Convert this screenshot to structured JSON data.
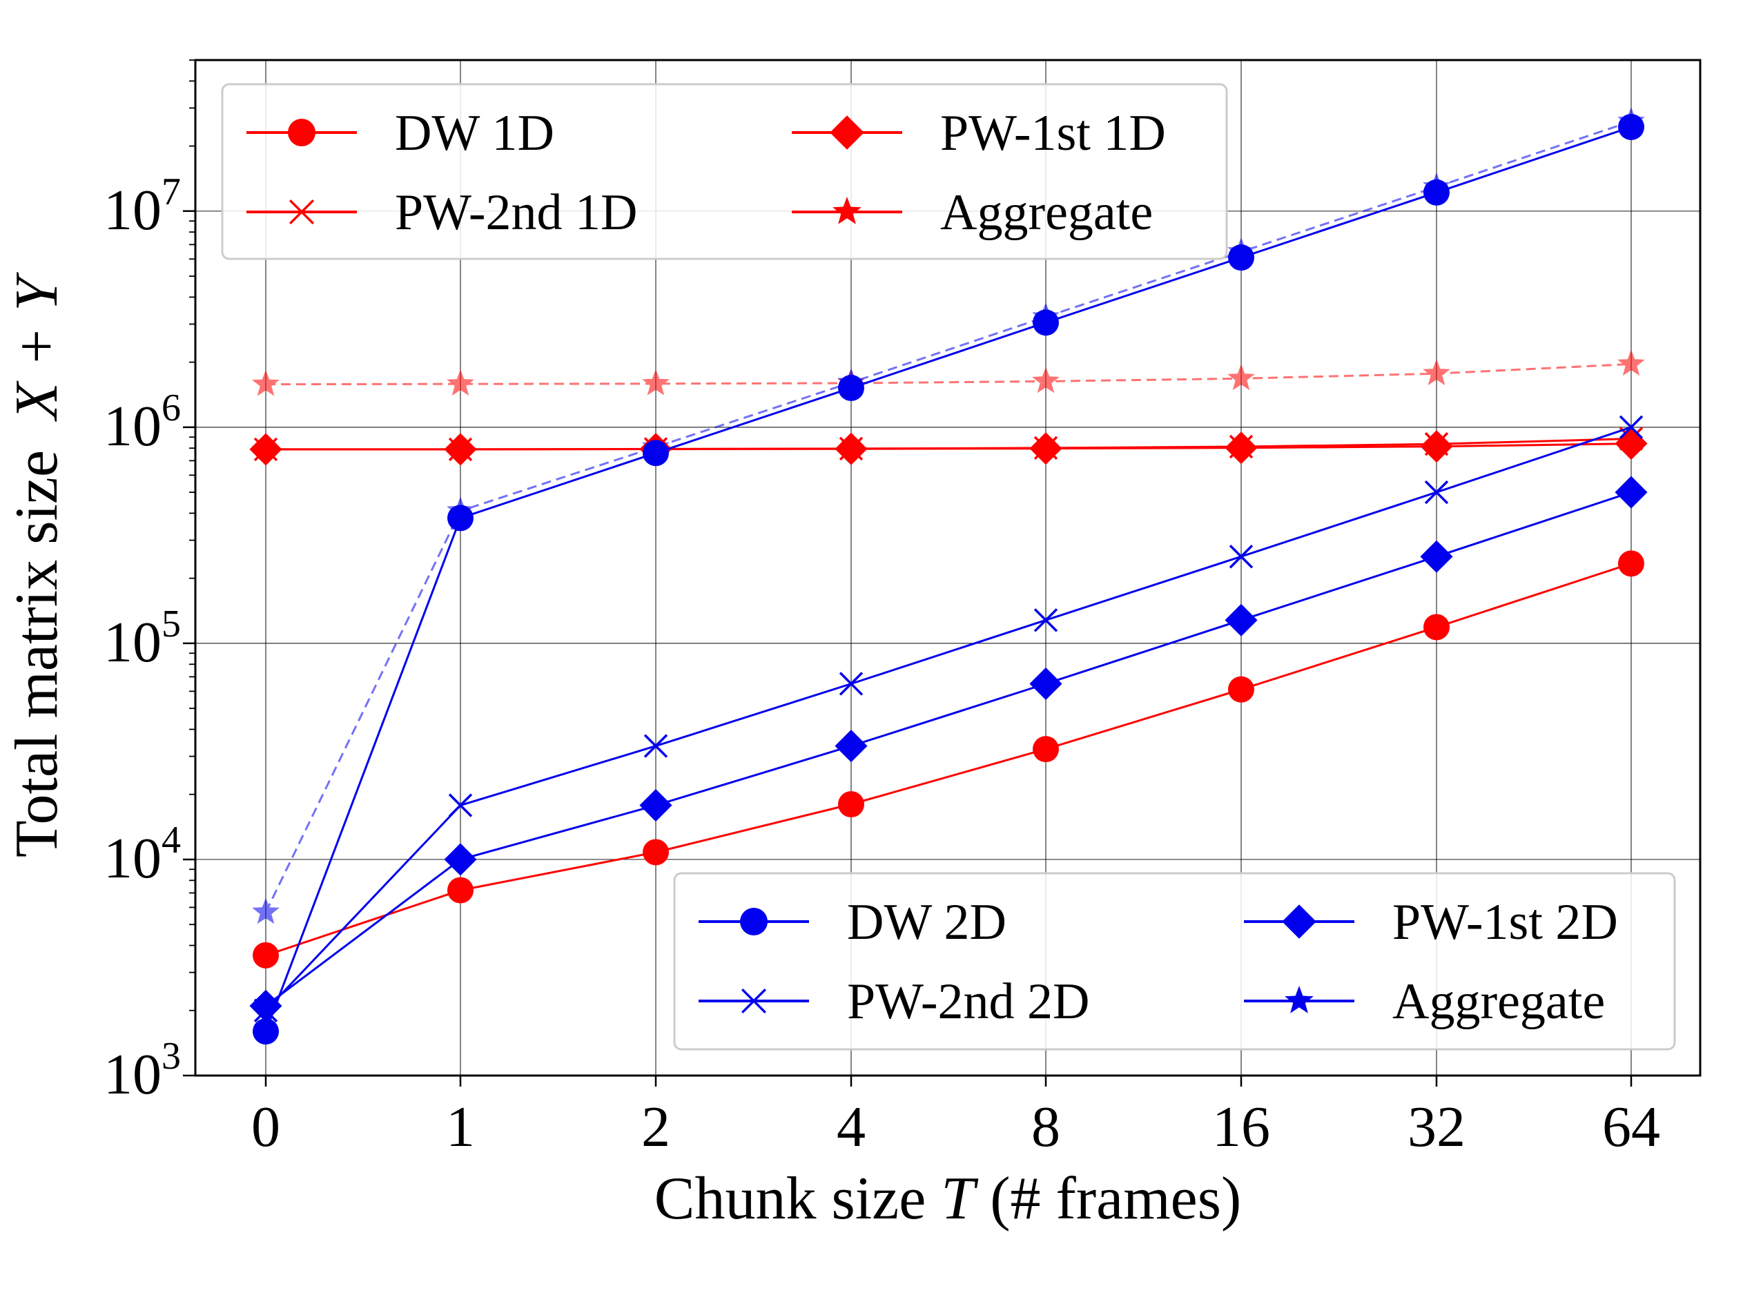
{
  "chart_data": {
    "type": "line",
    "x_scale": "categorical",
    "y_scale": "log",
    "categories": [
      "0",
      "1",
      "2",
      "4",
      "8",
      "16",
      "32",
      "64"
    ],
    "xlabel_prefix": "Chunk size ",
    "xlabel_var": "T",
    "xlabel_suffix": " (# frames)",
    "ylabel_prefix": "Total matrix size  ",
    "ylabel_var": "X + Y",
    "ylim": [
      1000,
      50000000
    ],
    "y_ticks": [
      {
        "value": 1000,
        "base": "10",
        "exp": "3"
      },
      {
        "value": 10000,
        "base": "10",
        "exp": "4"
      },
      {
        "value": 100000,
        "base": "10",
        "exp": "5"
      },
      {
        "value": 1000000,
        "base": "10",
        "exp": "6"
      },
      {
        "value": 10000000,
        "base": "10",
        "exp": "7"
      }
    ],
    "grid": true,
    "colors": {
      "red": "#ff0000",
      "blue": "#0000ee",
      "red_light": "#ff7070",
      "blue_light": "#7a7aee"
    },
    "series": [
      {
        "name": "DW 1D",
        "group": "1D",
        "color": "#ff0000",
        "marker": "circle",
        "linestyle": "solid",
        "alpha": 1,
        "values": [
          3600,
          7200,
          10800,
          18000,
          32400,
          61200,
          118800,
          234000
        ]
      },
      {
        "name": "PW-1st 1D",
        "group": "1D",
        "color": "#ff0000",
        "marker": "diamond",
        "linestyle": "solid",
        "alpha": 1,
        "values": [
          790000,
          790000,
          792000,
          794000,
          797000,
          803000,
          815000,
          840000
        ]
      },
      {
        "name": "PW-2nd 1D",
        "group": "1D",
        "color": "#ff0000",
        "marker": "x",
        "linestyle": "solid",
        "alpha": 1,
        "values": [
          790000,
          790000,
          793000,
          796000,
          802000,
          813000,
          836000,
          885000
        ]
      },
      {
        "name": "Aggregate",
        "group": "1D",
        "color": "#ff0000",
        "marker": "star",
        "linestyle": "dashed",
        "alpha": 0.55,
        "values": [
          1580000,
          1585000,
          1590000,
          1600000,
          1630000,
          1680000,
          1770000,
          1960000
        ]
      },
      {
        "name": "DW 2D",
        "group": "2D",
        "color": "#0000ee",
        "marker": "circle",
        "linestyle": "solid",
        "alpha": 1,
        "values": [
          1600,
          380000,
          760000,
          1520000,
          3050000,
          6100000,
          12200000,
          24500000
        ]
      },
      {
        "name": "PW-1st 2D",
        "group": "2D",
        "color": "#0000ee",
        "marker": "diamond",
        "linestyle": "solid",
        "alpha": 1,
        "values": [
          2100,
          10000,
          17800,
          33500,
          65000,
          128000,
          252000,
          500000
        ]
      },
      {
        "name": "PW-2nd 2D",
        "group": "2D",
        "color": "#0000ee",
        "marker": "x",
        "linestyle": "solid",
        "alpha": 1,
        "values": [
          2000,
          17800,
          33500,
          65000,
          128000,
          252000,
          500000,
          1000000
        ]
      },
      {
        "name": "Aggregate",
        "group": "2D",
        "color": "#0000ee",
        "marker": "star",
        "linestyle": "dashed",
        "alpha": 0.55,
        "values": [
          5700,
          410000,
          810000,
          1610000,
          3240000,
          6480000,
          12950000,
          26000000
        ]
      }
    ],
    "legends": [
      {
        "placement": "top-left",
        "entries": [
          {
            "label": "DW 1D",
            "color": "#ff0000",
            "marker": "circle"
          },
          {
            "label": "PW-1st 1D",
            "color": "#ff0000",
            "marker": "diamond"
          },
          {
            "label": "PW-2nd 1D",
            "color": "#ff0000",
            "marker": "x"
          },
          {
            "label": "Aggregate",
            "color": "#ff0000",
            "marker": "star"
          }
        ]
      },
      {
        "placement": "bottom-right",
        "entries": [
          {
            "label": "DW 2D",
            "color": "#0000ee",
            "marker": "circle"
          },
          {
            "label": "PW-1st 2D",
            "color": "#0000ee",
            "marker": "diamond"
          },
          {
            "label": "PW-2nd 2D",
            "color": "#0000ee",
            "marker": "x"
          },
          {
            "label": "Aggregate",
            "color": "#0000ee",
            "marker": "star"
          }
        ]
      }
    ]
  }
}
